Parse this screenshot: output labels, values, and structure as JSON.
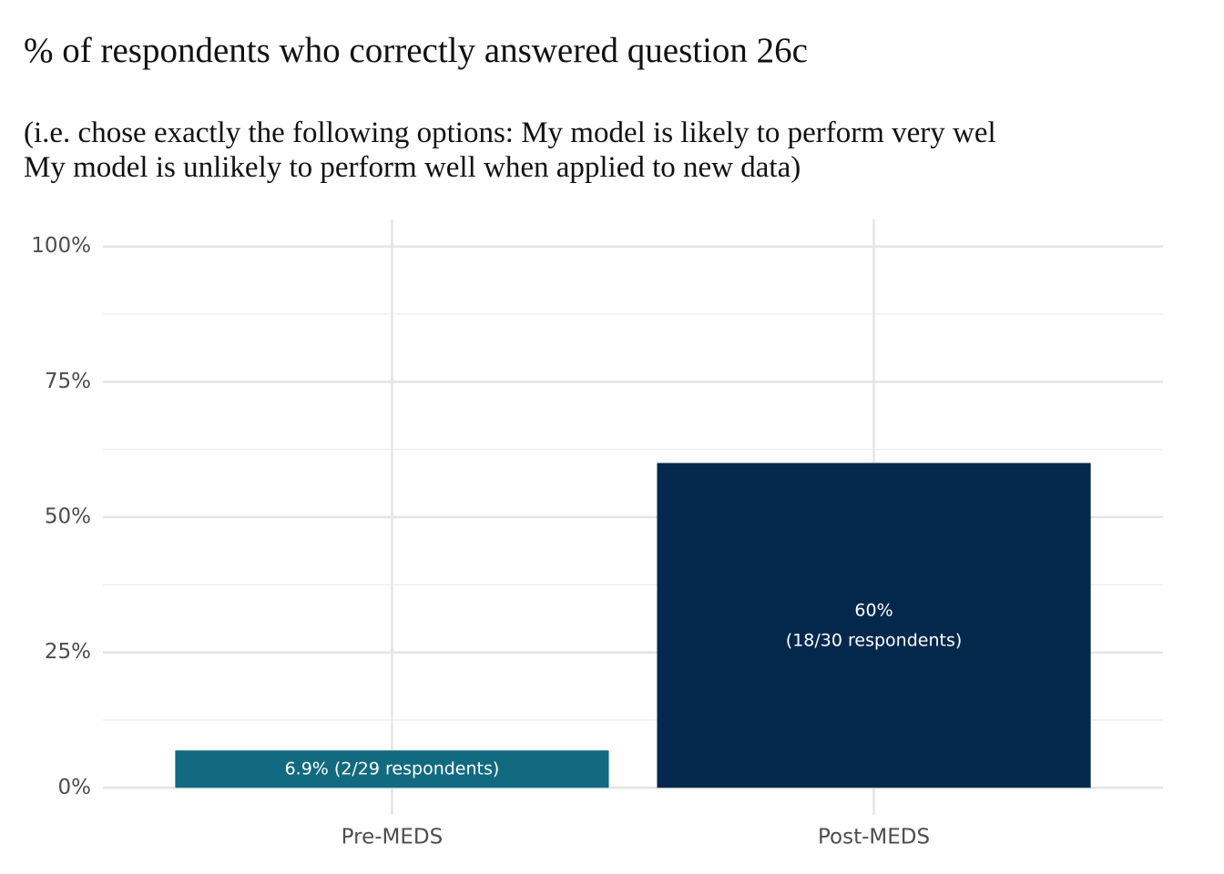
{
  "chart_data": {
    "type": "bar",
    "title": "% of respondents who correctly answered question 26c",
    "subtitle": [
      "(i.e. chose exactly the following options: My model is likely to perform very wel",
      "My model is unlikely to perform well when applied to new data)"
    ],
    "categories": [
      "Pre-MEDS",
      "Post-MEDS"
    ],
    "values": [
      6.9,
      60
    ],
    "value_labels": [
      "6.9% (2/29 respondents)",
      "60%\n(18/30 respondents)"
    ],
    "colors": [
      "#116a80",
      "#04284c"
    ],
    "ylim": [
      -5,
      105
    ],
    "yticks": [
      {
        "value": 0,
        "label": "0%"
      },
      {
        "value": 25,
        "label": "25%"
      },
      {
        "value": 50,
        "label": "50%"
      },
      {
        "value": 75,
        "label": "75%"
      },
      {
        "value": 100,
        "label": "100%"
      }
    ],
    "minor_yticks": [
      12.5,
      37.5,
      62.5,
      87.5
    ],
    "grid": true
  }
}
